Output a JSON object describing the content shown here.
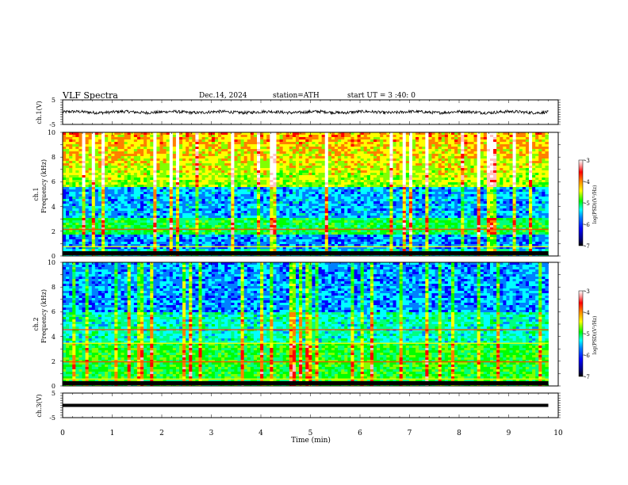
{
  "header": {
    "title": "VLF  Spectra",
    "date": "Dec.14, 2024",
    "station": "station=ATH",
    "start_ut": "start  UT  =   3  :40: 0"
  },
  "chart_data": [
    {
      "id": "ch1-waveform",
      "type": "line",
      "ylabel": "ch.1(V)",
      "ylim": [
        -5,
        5
      ],
      "yticks": [
        "5",
        "-5"
      ],
      "xlim": [
        0,
        10
      ],
      "x_extent": [
        0,
        9.8
      ],
      "baseline": 0,
      "amplitude": 0.6
    },
    {
      "id": "ch1-spectrogram",
      "type": "heatmap",
      "ylabel": "ch.1",
      "ylabel2": "Frequency  (kHz)",
      "ylim": [
        0,
        10
      ],
      "yticks": [
        "0",
        "2",
        "4",
        "6",
        "8",
        "10"
      ],
      "xlim": [
        0,
        10
      ],
      "x_extent": [
        0,
        9.8
      ],
      "colorbar": {
        "label": "log(PSD)(V²/Hz)",
        "range": [
          -7,
          -3
        ],
        "ticks": [
          "-3",
          "-4",
          "-5",
          "-6",
          "-7"
        ]
      }
    },
    {
      "id": "ch2-spectrogram",
      "type": "heatmap",
      "ylabel": "ch.2",
      "ylabel2": "Frequency  (kHz)",
      "ylim": [
        0,
        10
      ],
      "yticks": [
        "0",
        "2",
        "4",
        "6",
        "8",
        "10"
      ],
      "xlim": [
        0,
        10
      ],
      "x_extent": [
        0,
        9.8
      ],
      "colorbar": {
        "label": "log(PSD)(V²/Hz)",
        "range": [
          -7,
          -3
        ],
        "ticks": [
          "-3",
          "-4",
          "-5",
          "-6",
          "-7"
        ]
      }
    },
    {
      "id": "ch3-waveform",
      "type": "line",
      "ylabel": "ch.3(V)",
      "ylim": [
        -5,
        5
      ],
      "yticks": [
        "5",
        "-5"
      ],
      "xlim": [
        0,
        10
      ],
      "x_extent": [
        0,
        9.8
      ],
      "baseline": 0,
      "amplitude": 0.2
    }
  ],
  "xaxis": {
    "label": "Time  (min)",
    "ticks": [
      "0",
      "1",
      "2",
      "3",
      "4",
      "5",
      "6",
      "7",
      "8",
      "9",
      "10"
    ]
  },
  "colors": {
    "colormap": [
      "#000080",
      "#0000ff",
      "#0080ff",
      "#00ffff",
      "#00ff80",
      "#00ff00",
      "#80ff00",
      "#ffff00",
      "#ff8000",
      "#ff0000",
      "#ffc0c0",
      "#ffffff"
    ],
    "axis": "#000000",
    "background": "#ffffff"
  }
}
